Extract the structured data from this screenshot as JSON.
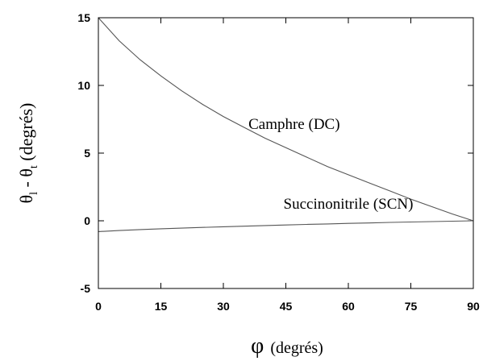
{
  "chart_data": {
    "type": "line",
    "xlabel": {
      "symbol": "φ",
      "text": "(degrés)"
    },
    "ylabel": {
      "theta": "θ",
      "sub_l": "l",
      "minus": " - ",
      "sub_t": "t",
      "unit": " (degrés)"
    },
    "xlim": [
      0,
      90
    ],
    "ylim": [
      -5,
      15
    ],
    "xticks": [
      0,
      15,
      30,
      45,
      60,
      75,
      90
    ],
    "yticks": [
      -5,
      0,
      5,
      10,
      15
    ],
    "grid": false,
    "series": [
      {
        "name": "Camphre (DC)",
        "color": "#555555",
        "x": [
          0,
          5,
          10,
          15,
          20,
          25,
          30,
          35,
          40,
          45,
          50,
          55,
          60,
          65,
          70,
          75,
          80,
          85,
          90
        ],
        "y": [
          15,
          13.3,
          11.9,
          10.7,
          9.6,
          8.6,
          7.7,
          6.9,
          6.1,
          5.4,
          4.7,
          4.0,
          3.4,
          2.8,
          2.2,
          1.6,
          1.05,
          0.5,
          0
        ]
      },
      {
        "name": "Succinonitrile (SCN)",
        "color": "#555555",
        "x": [
          0,
          5,
          10,
          15,
          20,
          25,
          30,
          35,
          40,
          45,
          50,
          55,
          60,
          65,
          70,
          75,
          80,
          85,
          90
        ],
        "y": [
          -0.8,
          -0.72,
          -0.65,
          -0.59,
          -0.54,
          -0.49,
          -0.44,
          -0.4,
          -0.35,
          -0.31,
          -0.27,
          -0.23,
          -0.19,
          -0.16,
          -0.12,
          -0.09,
          -0.06,
          -0.03,
          0
        ]
      }
    ],
    "annotations": [
      {
        "text": "Camphre (DC)",
        "x": 47,
        "y": 6.8
      },
      {
        "text": "Succinonitrile (SCN)",
        "x": 60,
        "y": 0.9
      }
    ]
  }
}
